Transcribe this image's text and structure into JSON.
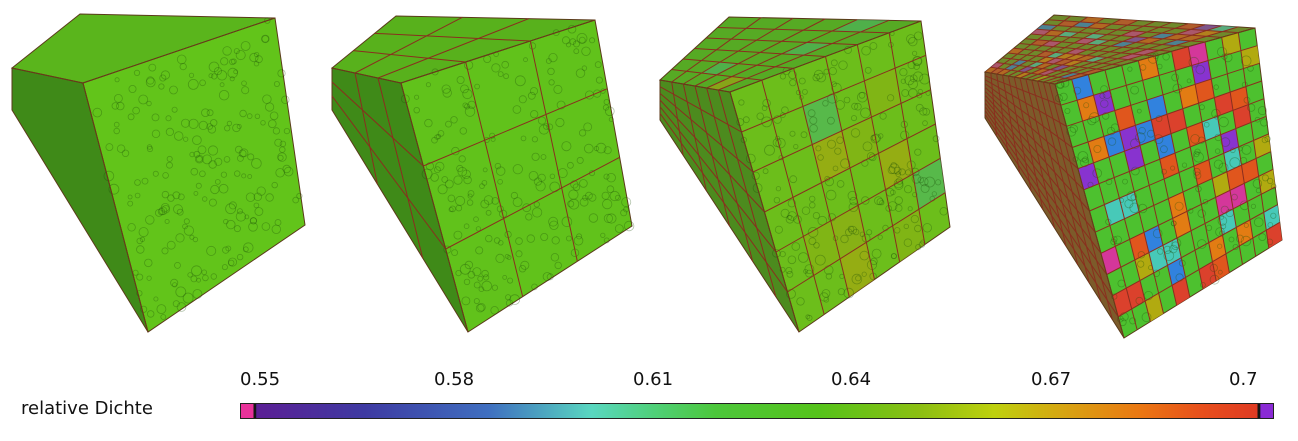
{
  "legend": {
    "label": "relative Dichte",
    "ticks": [
      "0.55",
      "0.58",
      "0.61",
      "0.64",
      "0.67",
      "0.7"
    ]
  },
  "colorbar": {
    "range": [
      0.55,
      0.7
    ],
    "colors": [
      "#e8329a",
      "#3e3aa2",
      "#59d7c0",
      "#4cc73b",
      "#bed00e",
      "#ea7812",
      "#df3a23",
      "#8a2ad5"
    ]
  },
  "cubes": [
    {
      "subdivisions": 1,
      "top_color": "#5ab51c",
      "front_color": "#62c41a",
      "side_color": "#3f8a18",
      "hotspots": []
    },
    {
      "subdivisions": 3,
      "top_color": "#58b11c",
      "front_color": "#61c21b",
      "side_color": "#3f8a18",
      "hotspots": []
    },
    {
      "subdivisions": 6,
      "top_color": "#56aa24",
      "front_color": "#6cbe1b",
      "side_color": "#4c8b1e",
      "hotspots": [
        "#8daf13",
        "#9aa812",
        "#4ab56a",
        "#b0a10f"
      ]
    },
    {
      "subdivisions": 12,
      "top_color": "#6f8a2b",
      "front_color": "#4dc12f",
      "side_color": "#7c5b2a",
      "hotspots": [
        "#e8501c",
        "#e33a2c",
        "#8b2bd8",
        "#db2fa0",
        "#2f7ee8",
        "#ea7812",
        "#47c9c0",
        "#b6a90f"
      ]
    }
  ]
}
